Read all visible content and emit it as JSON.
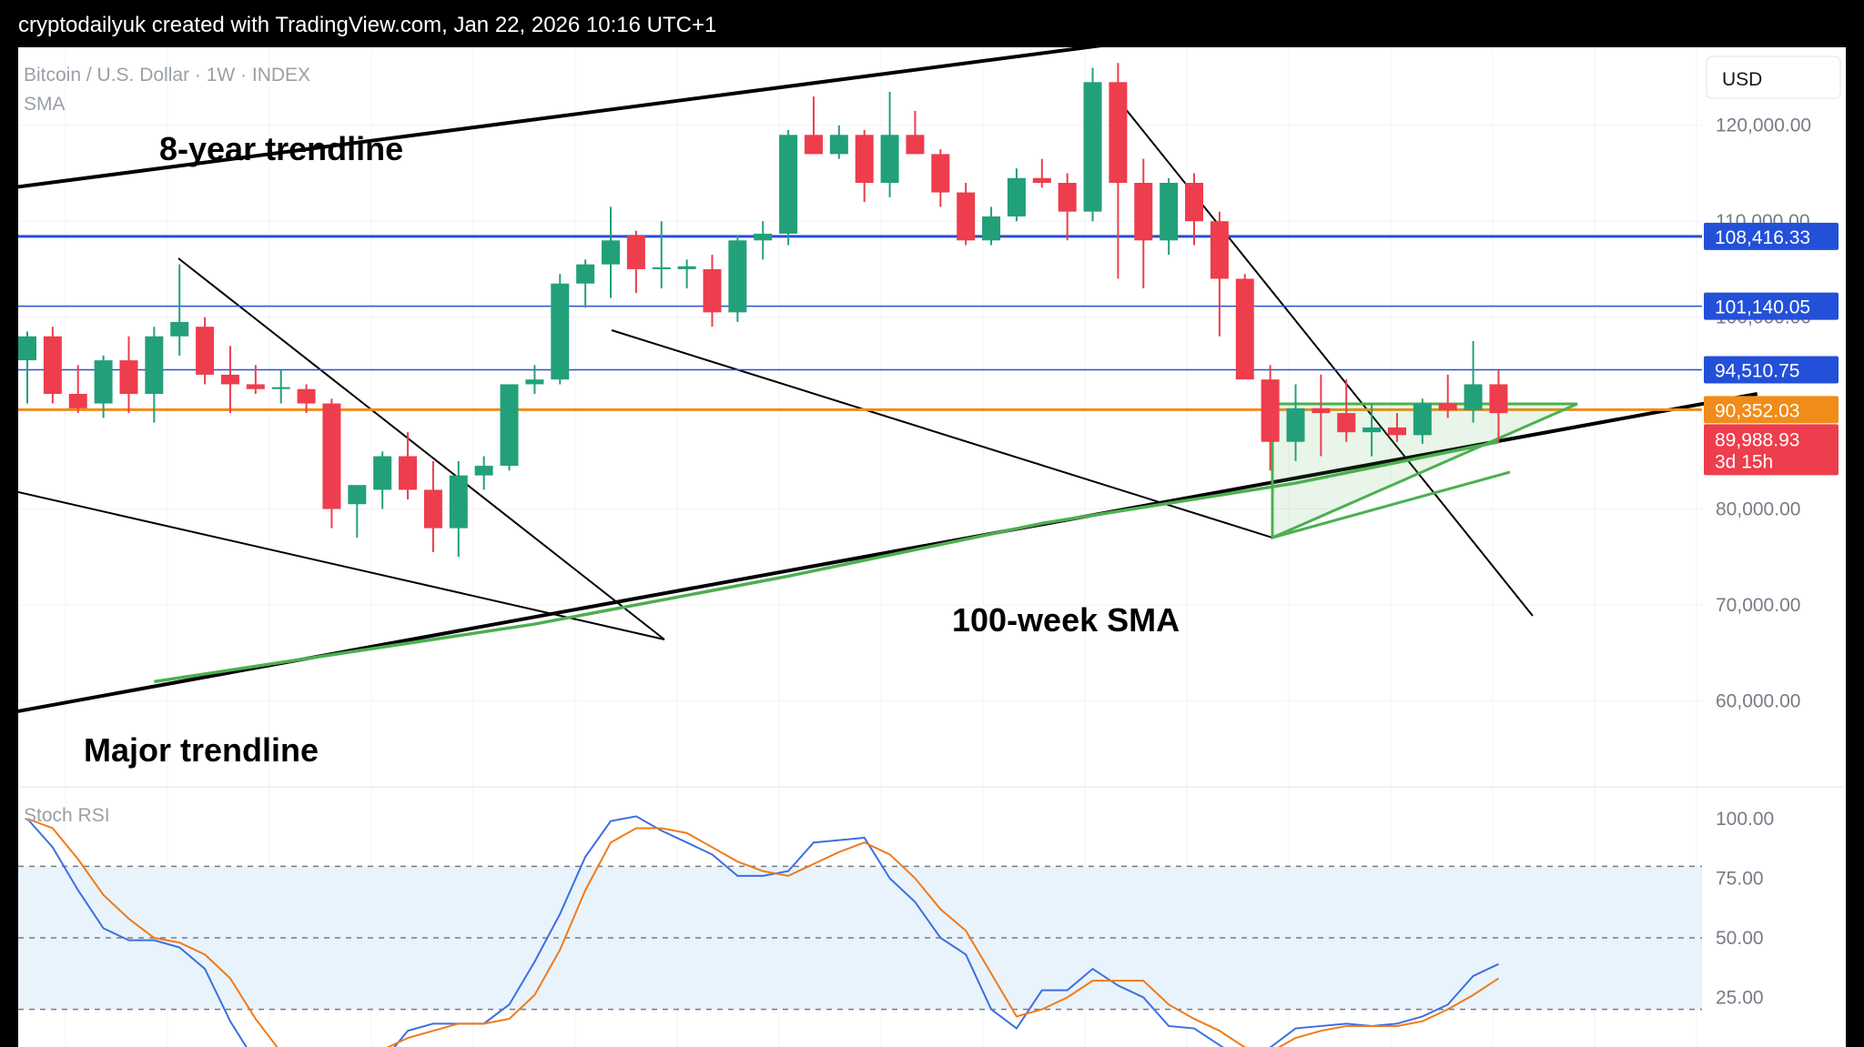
{
  "header": {
    "caption": "cryptodailyuk created with TradingView.com, Jan 22, 2026 10:16 UTC+1"
  },
  "legend": {
    "symbol": "Bitcoin / U.S. Dollar · 1W · INDEX",
    "indicator": "SMA",
    "oscillator": "Stoch RSI"
  },
  "currency": "USD",
  "annotations": {
    "eight_year": "8-year trendline",
    "sma100": "100-week SMA",
    "major": "Major trendline"
  },
  "price_tags": {
    "resistance_1": "108,416.33",
    "resistance_2": "101,140.05",
    "resistance_3": "94,510.75",
    "open": "90,352.03",
    "last": "89,988.93",
    "countdown": "3d 15h"
  },
  "colors": {
    "up": "#22a07a",
    "down": "#ee3d4c",
    "level_blue": "#2350d8",
    "level_orange": "#f08c1a",
    "sma": "#4caf50",
    "rsi_k": "#3d6fe0",
    "rsi_d": "#f07a1a",
    "band": "#e8f3fc"
  },
  "chart_data": [
    {
      "type": "candlestick",
      "timeframe": "1W",
      "y_axis_ticks": [
        "120,000.00",
        "110,000.00",
        "100,000.00",
        "80,000.00",
        "70,000.00",
        "60,000.00"
      ],
      "ylim": [
        54000,
        130500
      ],
      "candles": [
        {
          "o": 95500,
          "h": 98500,
          "l": 91000,
          "c": 98000
        },
        {
          "o": 98000,
          "h": 99000,
          "l": 91000,
          "c": 92000
        },
        {
          "o": 92000,
          "h": 95000,
          "l": 90000,
          "c": 90500
        },
        {
          "o": 91000,
          "h": 96000,
          "l": 89500,
          "c": 95500
        },
        {
          "o": 95500,
          "h": 98000,
          "l": 90000,
          "c": 92000
        },
        {
          "o": 92000,
          "h": 99000,
          "l": 89000,
          "c": 98000
        },
        {
          "o": 98000,
          "h": 105500,
          "l": 96000,
          "c": 99500
        },
        {
          "o": 99000,
          "h": 100000,
          "l": 93000,
          "c": 94000
        },
        {
          "o": 94000,
          "h": 97000,
          "l": 90000,
          "c": 93000
        },
        {
          "o": 93000,
          "h": 95000,
          "l": 92000,
          "c": 92500
        },
        {
          "o": 92500,
          "h": 94500,
          "l": 91000,
          "c": 92700
        },
        {
          "o": 92500,
          "h": 93000,
          "l": 90000,
          "c": 91000
        },
        {
          "o": 91000,
          "h": 91500,
          "l": 78000,
          "c": 80000
        },
        {
          "o": 80500,
          "h": 82000,
          "l": 77000,
          "c": 82500
        },
        {
          "o": 82000,
          "h": 86000,
          "l": 80000,
          "c": 85500
        },
        {
          "o": 85500,
          "h": 88000,
          "l": 81000,
          "c": 82000
        },
        {
          "o": 82000,
          "h": 85000,
          "l": 75500,
          "c": 78000
        },
        {
          "o": 78000,
          "h": 85000,
          "l": 75000,
          "c": 83500
        },
        {
          "o": 83500,
          "h": 85500,
          "l": 82000,
          "c": 84500
        },
        {
          "o": 84500,
          "h": 93000,
          "l": 84000,
          "c": 93000
        },
        {
          "o": 93000,
          "h": 95000,
          "l": 92000,
          "c": 93500
        },
        {
          "o": 93500,
          "h": 104500,
          "l": 93000,
          "c": 103500
        },
        {
          "o": 103500,
          "h": 106000,
          "l": 101000,
          "c": 105500
        },
        {
          "o": 105500,
          "h": 111500,
          "l": 102000,
          "c": 108000
        },
        {
          "o": 108500,
          "h": 109000,
          "l": 102500,
          "c": 105000
        },
        {
          "o": 105000,
          "h": 110000,
          "l": 103000,
          "c": 105200
        },
        {
          "o": 105000,
          "h": 106000,
          "l": 103000,
          "c": 105300
        },
        {
          "o": 105000,
          "h": 106500,
          "l": 99000,
          "c": 100500
        },
        {
          "o": 100500,
          "h": 108500,
          "l": 99500,
          "c": 108000
        },
        {
          "o": 108000,
          "h": 110000,
          "l": 106000,
          "c": 108700
        },
        {
          "o": 108700,
          "h": 119500,
          "l": 107500,
          "c": 119000
        },
        {
          "o": 119000,
          "h": 123000,
          "l": 117000,
          "c": 117000
        },
        {
          "o": 117000,
          "h": 120000,
          "l": 116500,
          "c": 119000
        },
        {
          "o": 119000,
          "h": 119500,
          "l": 112000,
          "c": 114000
        },
        {
          "o": 114000,
          "h": 123500,
          "l": 112500,
          "c": 119000
        },
        {
          "o": 119000,
          "h": 121500,
          "l": 117000,
          "c": 117000
        },
        {
          "o": 117000,
          "h": 117500,
          "l": 111500,
          "c": 113000
        },
        {
          "o": 113000,
          "h": 114000,
          "l": 107500,
          "c": 108000
        },
        {
          "o": 108000,
          "h": 111500,
          "l": 107500,
          "c": 110500
        },
        {
          "o": 110500,
          "h": 115500,
          "l": 110000,
          "c": 114500
        },
        {
          "o": 114500,
          "h": 116500,
          "l": 113500,
          "c": 114000
        },
        {
          "o": 114000,
          "h": 115000,
          "l": 108000,
          "c": 111000
        },
        {
          "o": 111000,
          "h": 126000,
          "l": 110000,
          "c": 124500
        },
        {
          "o": 124500,
          "h": 126500,
          "l": 104000,
          "c": 114000
        },
        {
          "o": 114000,
          "h": 116500,
          "l": 103000,
          "c": 108000
        },
        {
          "o": 108000,
          "h": 114500,
          "l": 106500,
          "c": 114000
        },
        {
          "o": 114000,
          "h": 115000,
          "l": 107500,
          "c": 110000
        },
        {
          "o": 110000,
          "h": 111000,
          "l": 98000,
          "c": 104000
        },
        {
          "o": 104000,
          "h": 104500,
          "l": 93500,
          "c": 93500
        },
        {
          "o": 93500,
          "h": 95000,
          "l": 84000,
          "c": 87000
        },
        {
          "o": 87000,
          "h": 93000,
          "l": 85000,
          "c": 90500
        },
        {
          "o": 90500,
          "h": 94000,
          "l": 85500,
          "c": 90000
        },
        {
          "o": 90000,
          "h": 93500,
          "l": 87000,
          "c": 88000
        },
        {
          "o": 88000,
          "h": 91000,
          "l": 85500,
          "c": 88500
        },
        {
          "o": 88500,
          "h": 90000,
          "l": 87000,
          "c": 87700
        },
        {
          "o": 87700,
          "h": 91500,
          "l": 86800,
          "c": 91000
        },
        {
          "o": 91000,
          "h": 94000,
          "l": 89500,
          "c": 90300
        },
        {
          "o": 90300,
          "h": 97500,
          "l": 89000,
          "c": 93000
        },
        {
          "o": 93000,
          "h": 94500,
          "l": 87000,
          "c": 89990
        }
      ],
      "sma_100w": [
        [
          5,
          62000
        ],
        [
          10,
          64000
        ],
        [
          20,
          68000
        ],
        [
          30,
          73000
        ],
        [
          40,
          78500
        ],
        [
          50,
          82700
        ],
        [
          58,
          87000
        ]
      ],
      "horizontal_levels": [
        108416.33,
        101140.05,
        94510.75,
        90352.03
      ],
      "trendlines": [
        {
          "name": "8-year trendline",
          "from": [
            -0.6,
            113500
          ],
          "to": [
            61.7,
            135000
          ]
        },
        {
          "name": "Major trendline",
          "from": [
            -0.6,
            58800
          ],
          "to": [
            68.2,
            92000
          ]
        }
      ]
    },
    {
      "type": "line",
      "title": "Stoch RSI",
      "y_axis_ticks": [
        "100.00",
        "75.00",
        "50.00",
        "25.00"
      ],
      "ylim": [
        0,
        100
      ],
      "band": [
        20,
        80
      ],
      "series": [
        {
          "name": "K",
          "x": [
            0,
            1,
            2,
            3,
            4,
            5,
            6,
            7,
            8,
            9,
            10,
            11,
            12,
            13,
            14,
            15,
            16,
            17,
            18,
            19,
            20,
            21,
            22,
            23,
            24,
            25,
            26,
            27,
            28,
            29,
            30,
            31,
            32,
            33,
            34,
            35,
            36,
            37,
            38,
            39,
            40,
            41,
            42,
            43,
            44,
            45,
            46,
            47,
            48,
            49,
            50,
            51,
            52,
            53,
            54,
            55,
            56,
            57,
            58
          ],
          "values": [
            100,
            88,
            70,
            54,
            49,
            49,
            46,
            37,
            15,
            -2,
            -10,
            -14,
            -12,
            -8,
            -2,
            11,
            14,
            14,
            14,
            22,
            40,
            60,
            84,
            99,
            101,
            95,
            90,
            85,
            76,
            76,
            78,
            90,
            91,
            92,
            75,
            65,
            50,
            43,
            20,
            12,
            28,
            28,
            37,
            30,
            25,
            13,
            12,
            5,
            -2,
            4,
            12,
            13,
            14,
            13,
            14,
            17,
            22,
            34,
            39
          ]
        },
        {
          "name": "D",
          "x": [
            0,
            1,
            2,
            3,
            4,
            5,
            6,
            7,
            8,
            9,
            10,
            11,
            12,
            13,
            14,
            15,
            16,
            17,
            18,
            19,
            20,
            21,
            22,
            23,
            24,
            25,
            26,
            27,
            28,
            29,
            30,
            31,
            32,
            33,
            34,
            35,
            36,
            37,
            38,
            39,
            40,
            41,
            42,
            43,
            44,
            45,
            46,
            47,
            48,
            49,
            50,
            51,
            52,
            53,
            54,
            55,
            56,
            57,
            58
          ],
          "values": [
            100,
            96,
            83,
            68,
            58,
            50,
            48,
            43,
            33,
            16,
            2,
            -8,
            -10,
            -7,
            3,
            8,
            11,
            14,
            14,
            16,
            26,
            45,
            70,
            90,
            96,
            96,
            94,
            88,
            82,
            78,
            76,
            81,
            86,
            90,
            85,
            75,
            62,
            53,
            35,
            17,
            20,
            25,
            32,
            32,
            32,
            22,
            16,
            11,
            4,
            2,
            8,
            11,
            13,
            13,
            13,
            15,
            20,
            26,
            33
          ]
        }
      ]
    }
  ]
}
